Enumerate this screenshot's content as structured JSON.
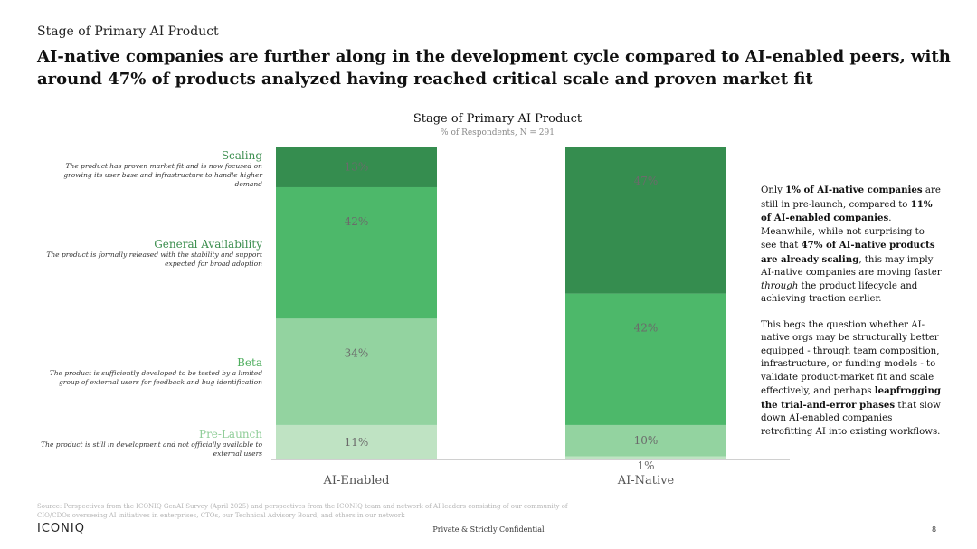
{
  "kicker": "Stage of Primary AI Product",
  "headline": "AI-native companies are further along in the development cycle compared to AI-enabled peers, with around 47% of products analyzed having reached critical scale and proven market fit",
  "stages": [
    {
      "name": "Scaling",
      "description": "The product has proven market fit and is now focused on growing its user base and infrastructure to handle higher demand",
      "color": "#3d8f50"
    },
    {
      "name": "General Availability",
      "description": "The product is formally released with the stability and support expected for broad adoption",
      "color": "#3d8f50"
    },
    {
      "name": "Beta",
      "description": "The product is sufficiently developed to be tested by a limited group of external users for feedback and bug identification",
      "color": "#4fae5f"
    },
    {
      "name": "Pre-Launch",
      "description": "The product is still in development and not officially available to external users",
      "color": "#8fcd98"
    }
  ],
  "chart_data": {
    "type": "bar",
    "stacked": true,
    "title": "Stage of Primary AI Product",
    "subtitle": "% of Respondents, N = 291",
    "categories": [
      "AI-Enabled",
      "AI-Native"
    ],
    "ylim": [
      0,
      100
    ],
    "grid": false,
    "series": [
      {
        "name": "Pre-Launch",
        "values": [
          11,
          1
        ],
        "color": "#bfe3c3"
      },
      {
        "name": "Beta",
        "values": [
          34,
          10
        ],
        "color": "#93d3a0"
      },
      {
        "name": "General Availability",
        "values": [
          42,
          42
        ],
        "color": "#4db86a"
      },
      {
        "name": "Scaling",
        "values": [
          13,
          47
        ],
        "color": "#358d4f"
      }
    ],
    "value_suffix": "%",
    "label_color": "#6b6b6b"
  },
  "side_note": {
    "p1": [
      {
        "text": "Only ",
        "bold": false
      },
      {
        "text": "1% of AI-native companies",
        "bold": true
      },
      {
        "text": " are still in pre-launch, compared to ",
        "bold": false
      },
      {
        "text": "11% of AI-enabled companies",
        "bold": true
      },
      {
        "text": ". Meanwhile, while not surprising to see that ",
        "bold": false
      },
      {
        "text": "47% of AI-native products are already scaling",
        "bold": true
      },
      {
        "text": ", this may imply AI-native companies are moving faster ",
        "bold": false
      },
      {
        "text": "through",
        "italic": true
      },
      {
        "text": " the product lifecycle and achieving traction earlier.",
        "bold": false
      }
    ],
    "p2": [
      {
        "text": "This begs the question whether AI-native orgs may be structurally better equipped - through team composition, infrastructure, or funding models - to validate product-market fit and scale effectively, and perhaps ",
        "bold": false
      },
      {
        "text": "leapfrogging the trial-and-error phases",
        "bold": true
      },
      {
        "text": " that slow down AI-enabled companies retrofitting AI into existing workflows.",
        "bold": false
      }
    ]
  },
  "footer": {
    "source": "Source: Perspectives from the ICONIQ GenAI Survey (April 2025) and perspectives from the ICONIQ team and network of AI leaders consisting of our community of CIO/CDOs overseeing AI initiatives in enterprises, CTOs, our Technical Advisory Board, and others in our network",
    "logo": "ICONIQ",
    "confidential": "Private & Strictly Confidential",
    "page": "8"
  }
}
